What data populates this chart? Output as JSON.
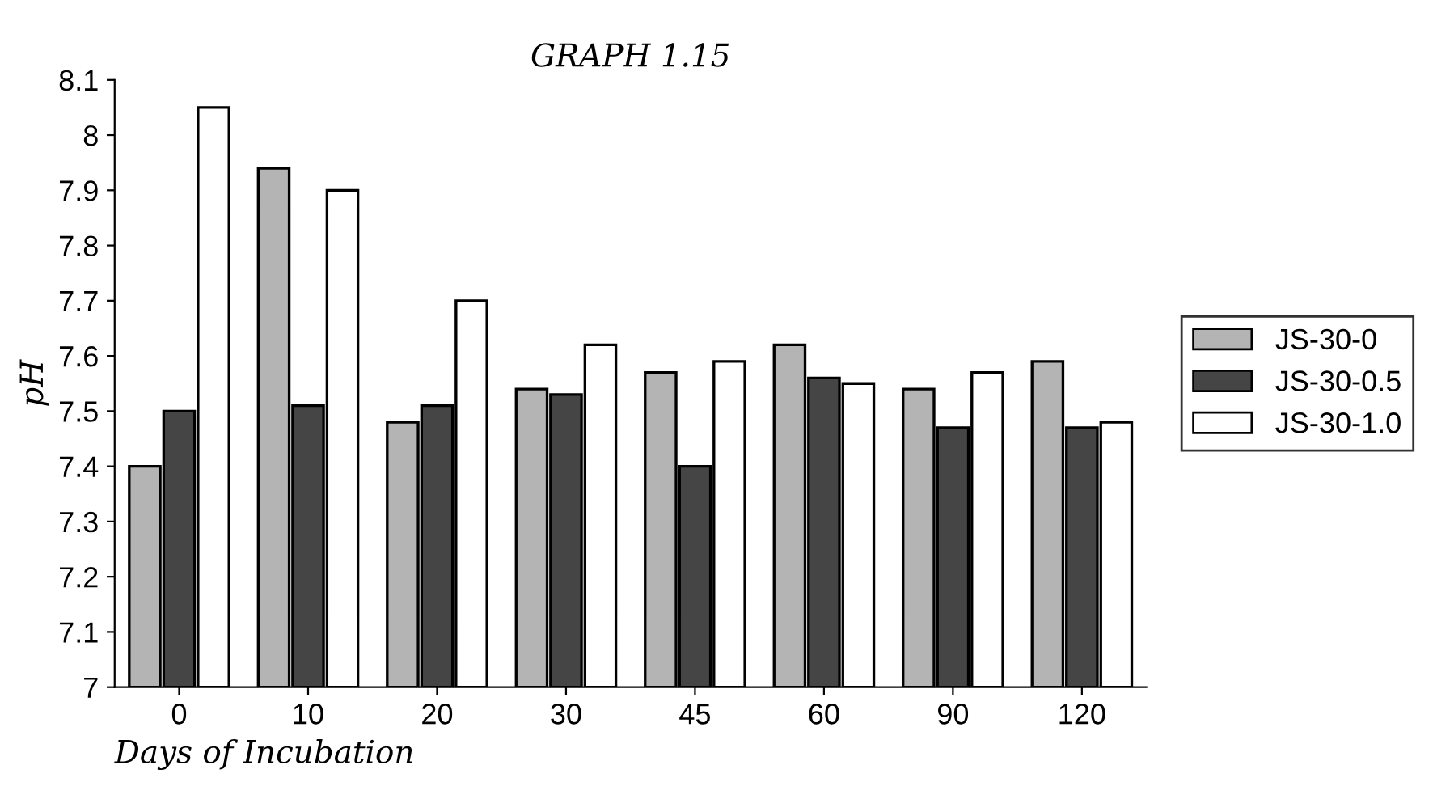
{
  "chart_data": {
    "type": "bar",
    "title": "GRAPH 1.15",
    "xlabel": "Days of Incubation",
    "ylabel": "pH",
    "categories": [
      "0",
      "10",
      "20",
      "30",
      "45",
      "60",
      "90",
      "120"
    ],
    "series": [
      {
        "name": "JS-30-0",
        "color": "#b4b4b4",
        "values": [
          7.4,
          7.94,
          7.48,
          7.54,
          7.57,
          7.62,
          7.54,
          7.59
        ]
      },
      {
        "name": "JS-30-0.5",
        "color": "#454545",
        "values": [
          7.5,
          7.51,
          7.51,
          7.53,
          7.4,
          7.56,
          7.47,
          7.47
        ]
      },
      {
        "name": "JS-30-1.0",
        "color": "#ffffff",
        "values": [
          8.05,
          7.9,
          7.7,
          7.62,
          7.59,
          7.55,
          7.57,
          7.48
        ]
      }
    ],
    "ylim": [
      7,
      8.1
    ],
    "yticks": [
      7,
      7.1,
      7.2,
      7.3,
      7.4,
      7.5,
      7.6,
      7.7,
      7.8,
      7.9,
      8,
      8.1
    ],
    "grid": false,
    "legend": "right"
  }
}
